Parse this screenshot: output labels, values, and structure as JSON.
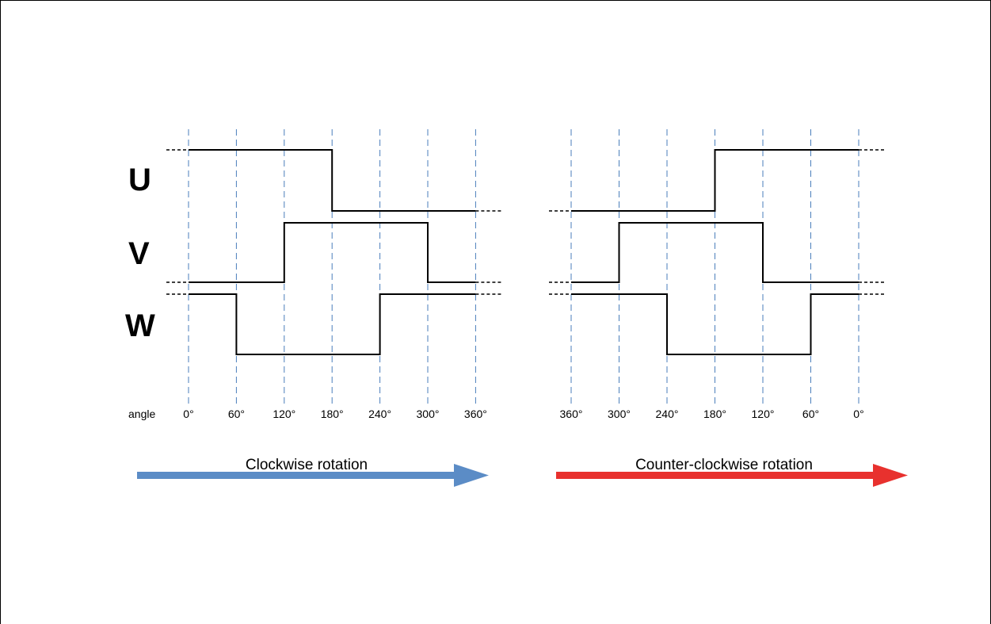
{
  "phases": [
    "U",
    "V",
    "W"
  ],
  "angle_label": "angle",
  "left_panel": {
    "angles": [
      "0°",
      "60°",
      "120°",
      "180°",
      "240°",
      "300°",
      "360°"
    ],
    "levels": {
      "U": [
        1,
        1,
        1,
        0,
        0,
        0
      ],
      "V": [
        0,
        0,
        1,
        1,
        1,
        0
      ],
      "W": [
        1,
        0,
        0,
        0,
        1,
        1
      ]
    },
    "arrow": {
      "label": "Clockwise rotation",
      "color": "#5b8cc6"
    }
  },
  "right_panel": {
    "angles": [
      "360°",
      "300°",
      "240°",
      "180°",
      "120°",
      "60°",
      "0°"
    ],
    "levels": {
      "U": [
        0,
        0,
        0,
        1,
        1,
        1
      ],
      "V": [
        0,
        1,
        1,
        1,
        0,
        0
      ],
      "W": [
        1,
        1,
        0,
        0,
        0,
        1
      ]
    },
    "arrow": {
      "label": "Counter-clockwise rotation",
      "color": "#e8312e"
    }
  }
}
